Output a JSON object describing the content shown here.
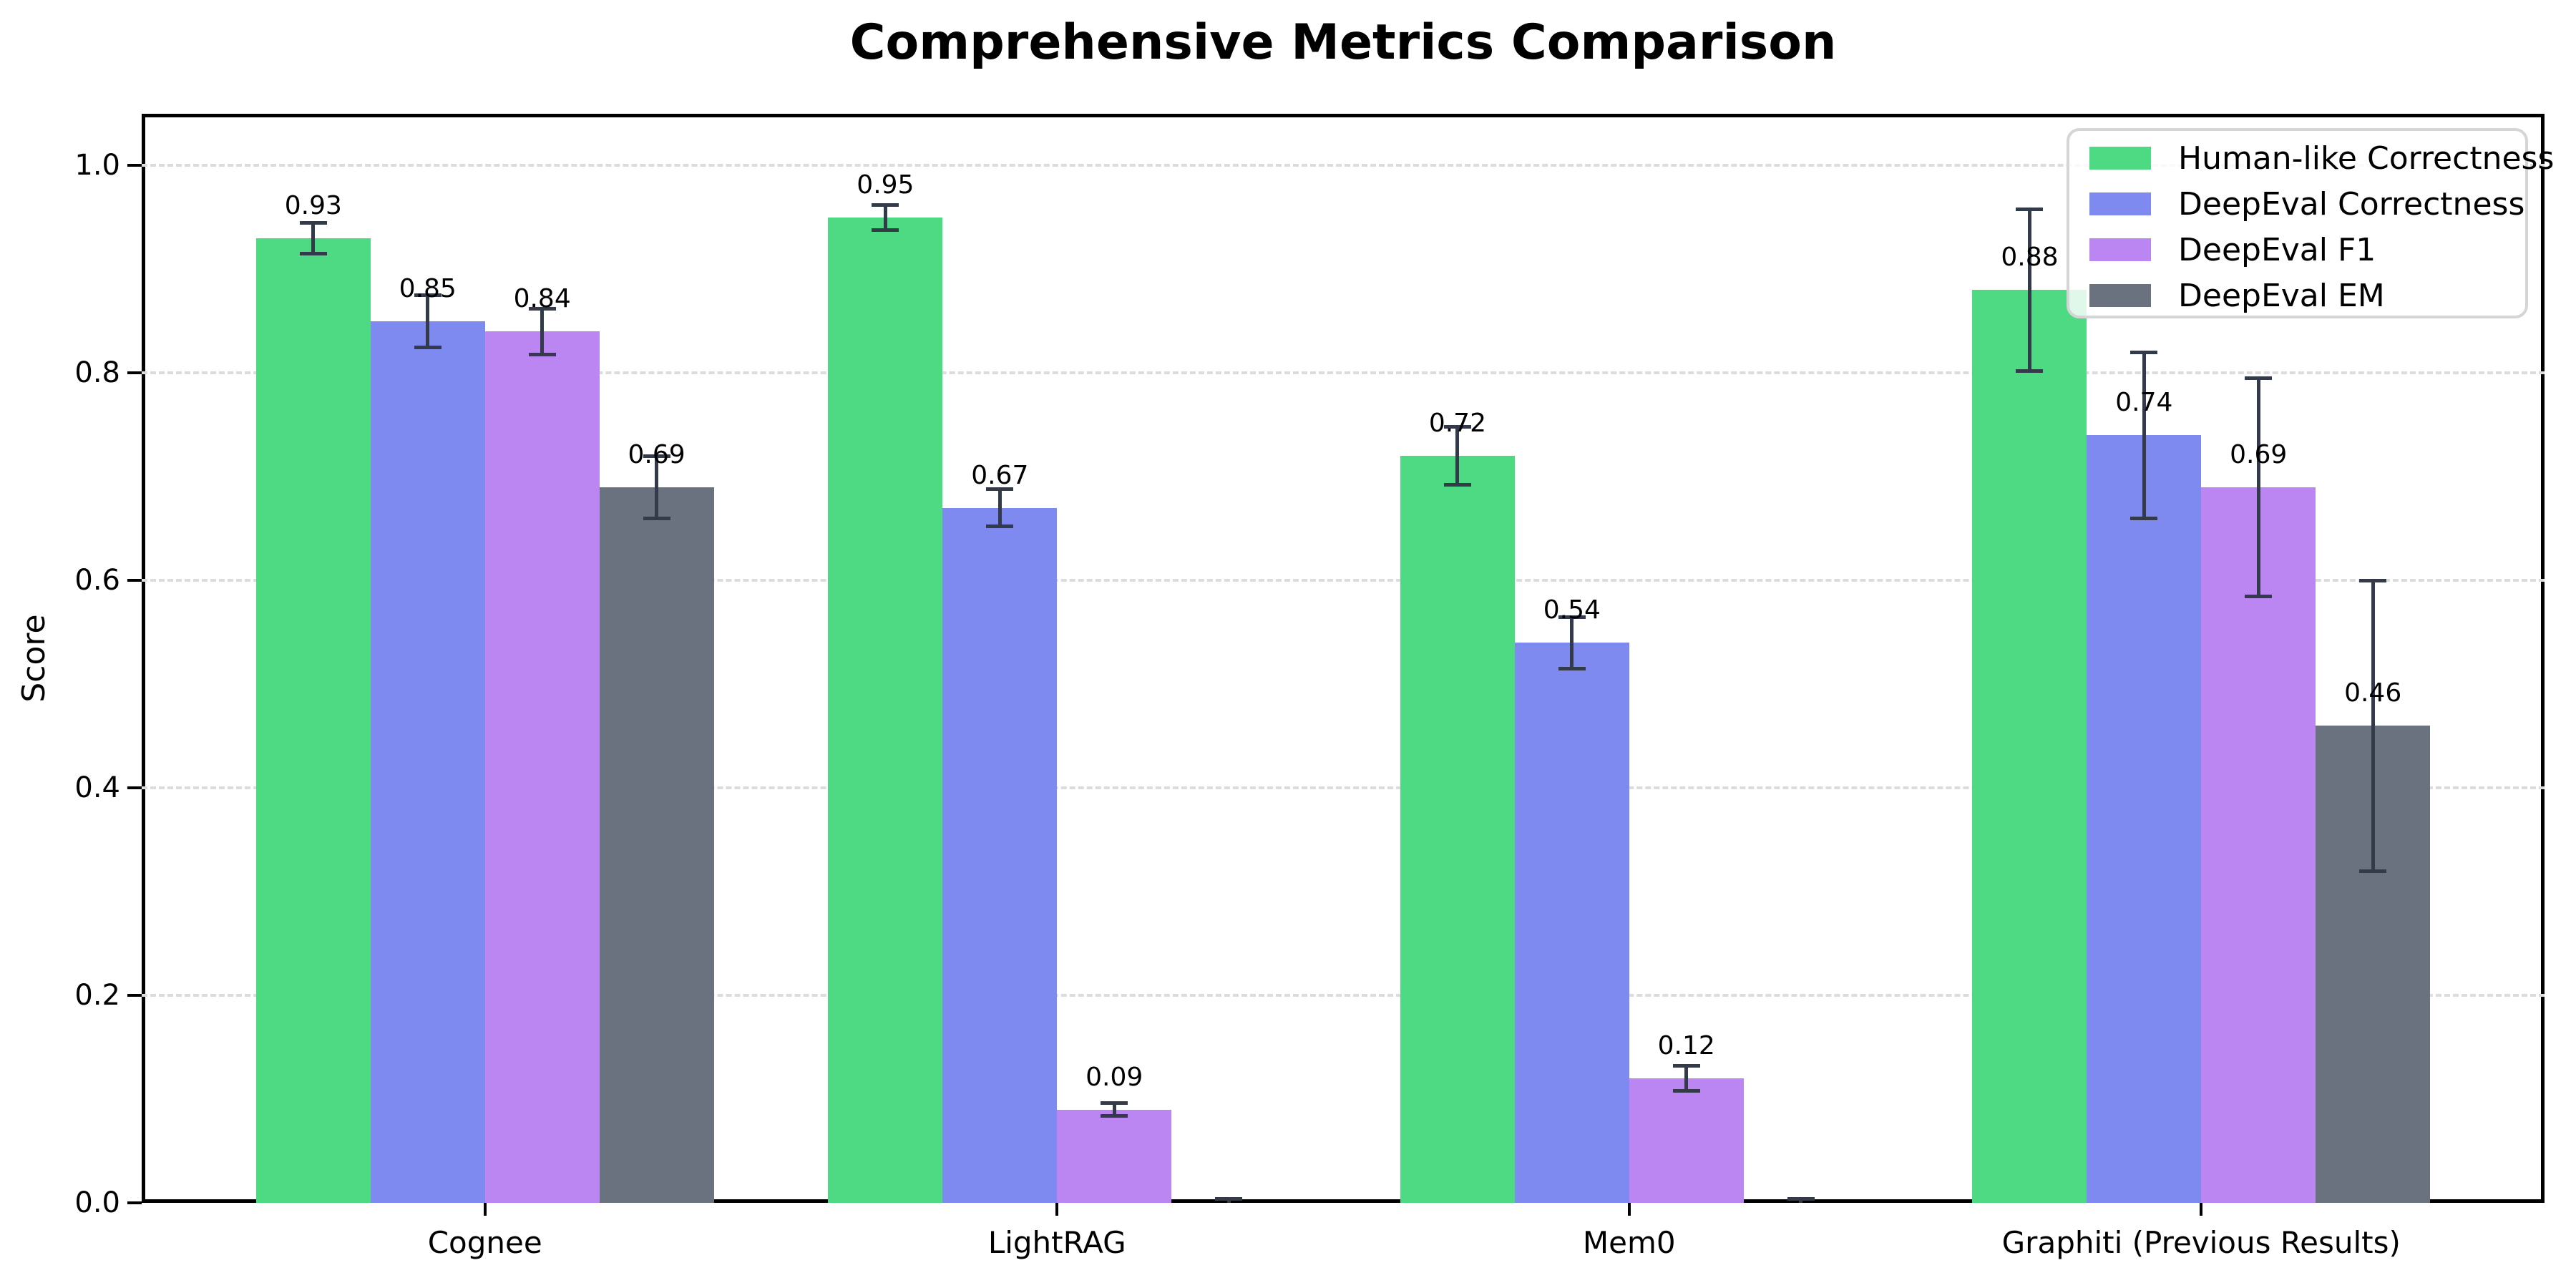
{
  "figure": {
    "title": "Comprehensive Metrics Comparison"
  },
  "chart_data": {
    "type": "bar",
    "title": "Comprehensive Metrics Comparison",
    "xlabel": "",
    "ylabel": "Score",
    "categories": [
      "Cognee",
      "LightRAG",
      "Mem0",
      "Graphiti (Previous Results)"
    ],
    "series": [
      {
        "name": "Human-like Correctness",
        "color": "#4ed983",
        "values": [
          0.93,
          0.95,
          0.72,
          0.88
        ],
        "errors": [
          0.015,
          0.012,
          0.028,
          0.078
        ],
        "bar_labels": [
          "0.93",
          "0.95",
          "0.72",
          "0.88"
        ]
      },
      {
        "name": "DeepEval Correctness",
        "color": "#7e8af0",
        "values": [
          0.85,
          0.67,
          0.54,
          0.74
        ],
        "errors": [
          0.025,
          0.018,
          0.025,
          0.08
        ],
        "bar_labels": [
          "0.85",
          "0.67",
          "0.54",
          "0.74"
        ]
      },
      {
        "name": "DeepEval F1",
        "color": "#bb85f2",
        "values": [
          0.84,
          0.09,
          0.12,
          0.69
        ],
        "errors": [
          0.022,
          0.006,
          0.012,
          0.105
        ],
        "bar_labels": [
          "0.84",
          "0.09",
          "0.12",
          "0.69"
        ]
      },
      {
        "name": "DeepEval EM",
        "color": "#6a7280",
        "values": [
          0.69,
          0.0,
          0.0,
          0.46
        ],
        "errors": [
          0.03,
          0.004,
          0.004,
          0.14
        ],
        "bar_labels": [
          "0.69",
          null,
          null,
          "0.46"
        ]
      }
    ],
    "ytick_labels": [
      "0.0",
      "0.2",
      "0.4",
      "0.6",
      "0.8",
      "1.0"
    ],
    "ytick_values": [
      0.0,
      0.2,
      0.4,
      0.6,
      0.8,
      1.0
    ],
    "ylim": [
      0,
      1.05
    ],
    "grid": "horizontal-dashed",
    "legend": {
      "position": "upper right",
      "entries": [
        "Human-like Correctness",
        "DeepEval Correctness",
        "DeepEval F1",
        "DeepEval EM"
      ]
    },
    "style": {
      "error_bar_color": "#333a4a",
      "grid_color": "#dcdcdc",
      "axis_color": "#000000",
      "legend_border_color": "#d5d5d5",
      "background_color": "#ffffff"
    }
  }
}
